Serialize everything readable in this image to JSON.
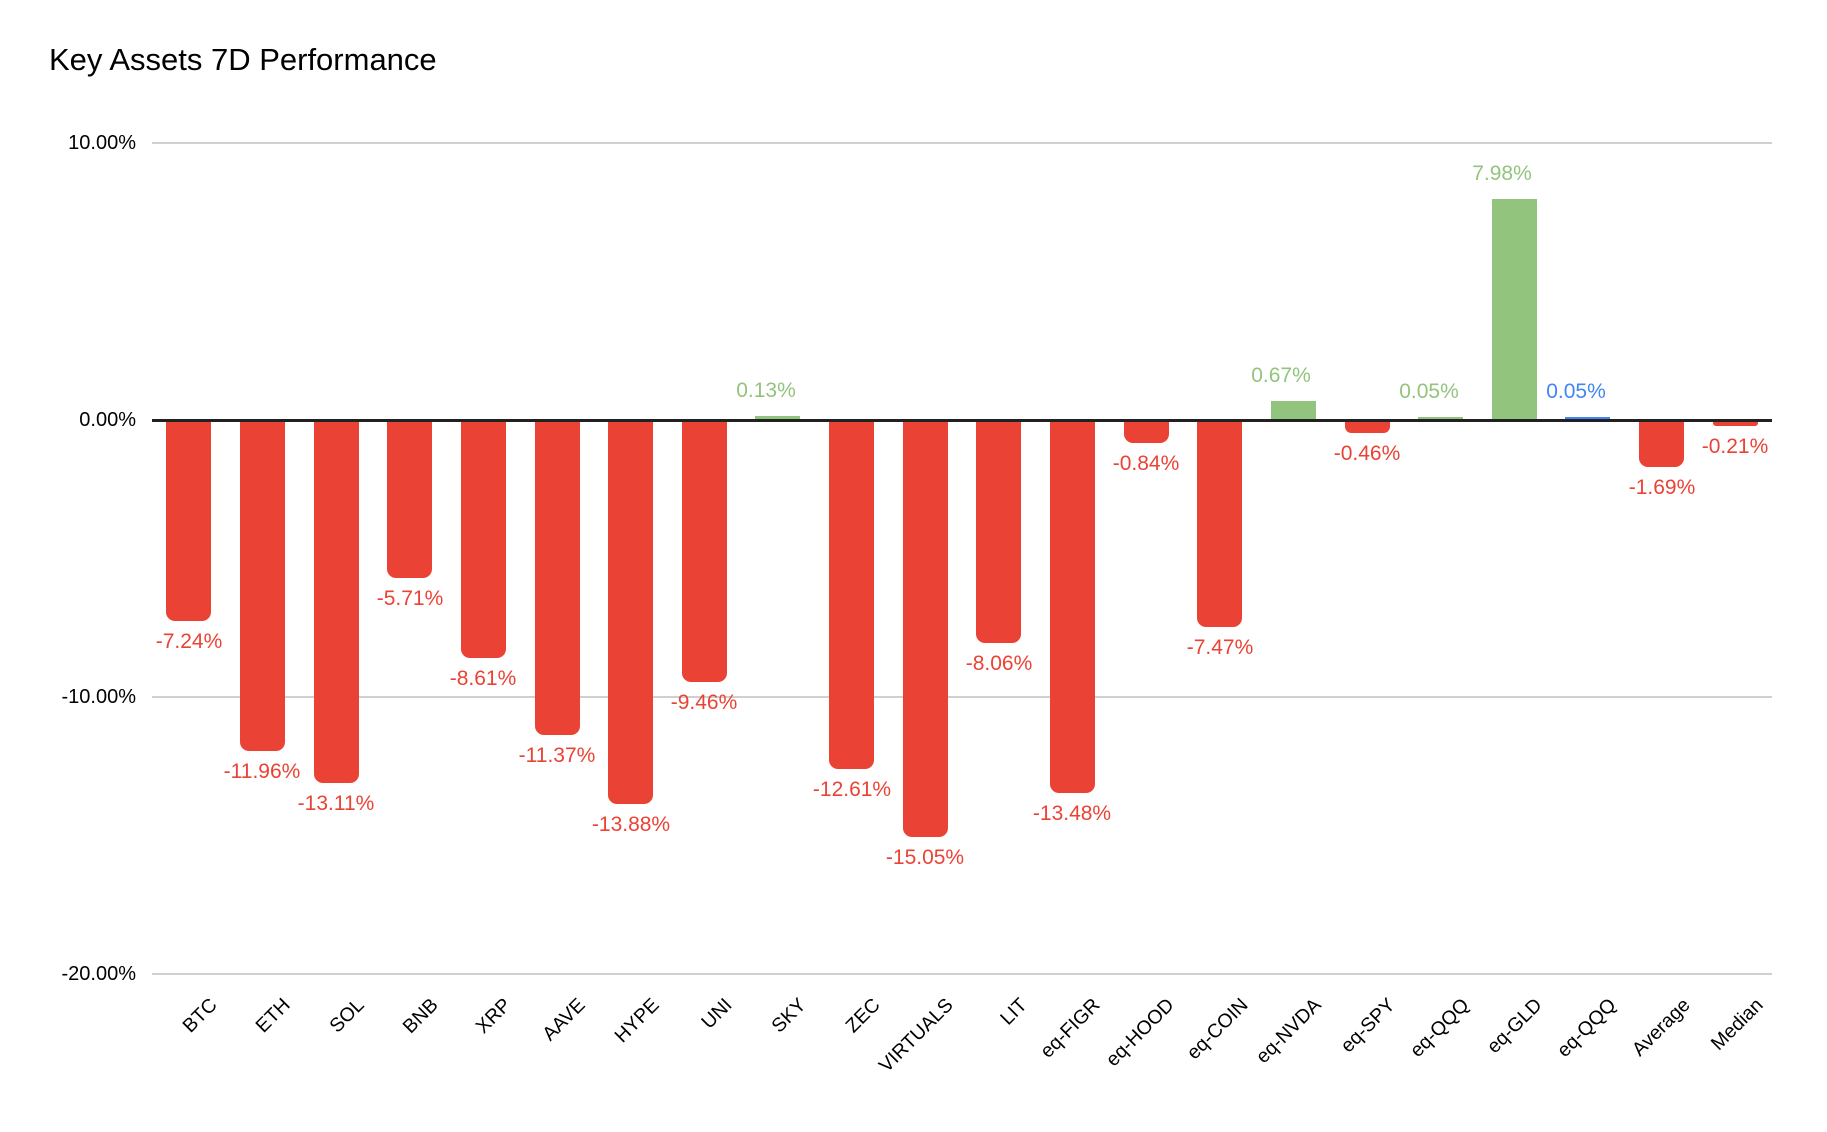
{
  "chart_data": {
    "type": "bar",
    "title": "Key Assets 7D Performance",
    "categories": [
      "BTC",
      "ETH",
      "SOL",
      "BNB",
      "XRP",
      "AAVE",
      "HYPE",
      "UNI",
      "SKY",
      "ZEC",
      "VIRTUALS",
      "LIT",
      "eq-FIGR",
      "eq-HOOD",
      "eq-COIN",
      "eq-NVDA",
      "eq-SPY",
      "eq-QQQ",
      "eq-GLD",
      "eq-QQQ",
      "Average",
      "Median"
    ],
    "values": [
      -7.24,
      -11.96,
      -13.11,
      -5.71,
      -8.61,
      -11.37,
      -13.88,
      -9.46,
      0.13,
      -12.61,
      -15.05,
      -8.06,
      -13.48,
      -0.84,
      -7.47,
      0.67,
      -0.46,
      0.05,
      7.98,
      0.05,
      -1.69,
      -0.21
    ],
    "value_labels": [
      "-7.24%",
      "-11.96%",
      "-13.11%",
      "-5.71%",
      "-8.61%",
      "-11.37%",
      "-13.88%",
      "-9.46%",
      "0.13%",
      "-12.61%",
      "-15.05%",
      "-8.06%",
      "-13.48%",
      "-0.84%",
      "-7.47%",
      "0.67%",
      "-0.46%",
      "0.05%",
      "7.98%",
      "0.05%",
      "-1.69%",
      "-0.21%"
    ],
    "point_colors": [
      "negative",
      "negative",
      "negative",
      "negative",
      "negative",
      "negative",
      "negative",
      "negative",
      "positive",
      "negative",
      "negative",
      "negative",
      "negative",
      "negative",
      "negative",
      "positive",
      "negative",
      "positive",
      "positive",
      "special",
      "negative",
      "negative"
    ],
    "palette": {
      "negative": "#EA4335",
      "positive": "#93C47D",
      "special": "#4285F4"
    },
    "ylim": [
      -20,
      10
    ],
    "yticks": [
      {
        "value": 10,
        "label": "10.00%"
      },
      {
        "value": 0,
        "label": "0.00%"
      },
      {
        "value": -10,
        "label": "-10.00%"
      },
      {
        "value": -20,
        "label": "-20.00%"
      }
    ],
    "xlabel": "",
    "ylabel": "",
    "grid": true,
    "legend": "none",
    "axis_colors": {
      "zero_line": "#212121",
      "gridline": "#d0d0d0",
      "tick_text": "#000000"
    }
  }
}
